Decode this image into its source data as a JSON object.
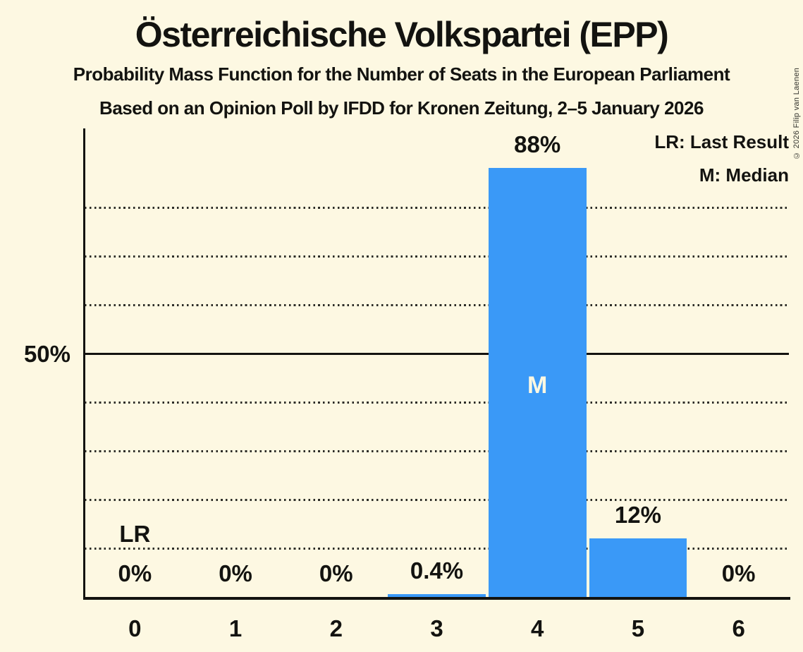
{
  "title": "Österreichische Volkspartei (EPP)",
  "subtitle": "Probability Mass Function for the Number of Seats in the European Parliament",
  "source_line": "Based on an Opinion Poll by IFDD for Kronen Zeitung, 2–5 January 2026",
  "copyright": "© 2026 Filip van Laenen",
  "legend": {
    "last_result": "LR: Last Result",
    "median": "M: Median"
  },
  "y_axis": {
    "tick_label": "50%",
    "tick_value": 50
  },
  "chart_data": {
    "type": "bar",
    "categories": [
      "0",
      "1",
      "2",
      "3",
      "4",
      "5",
      "6"
    ],
    "values": [
      0,
      0,
      0,
      0.4,
      88,
      12,
      0
    ],
    "value_labels": [
      "0%",
      "0%",
      "0%",
      "0.4%",
      "88%",
      "12%",
      "0%"
    ],
    "title": "Probability Mass Function for the Number of Seats in the European Parliament",
    "xlabel": "",
    "ylabel": "",
    "ylim": [
      0,
      96
    ],
    "grid": "horizontal-dotted",
    "gridlines_pct": [
      10,
      20,
      30,
      40,
      60,
      70,
      80
    ],
    "solid_gridline_pct": 50,
    "legend_position": "top-right",
    "median_index": 4,
    "median_marker": "M",
    "last_result_index": 0,
    "last_result_marker": "LR",
    "bar_color": "#3A99F7",
    "background_color": "#FDF8E2",
    "ink_color": "#131310"
  }
}
